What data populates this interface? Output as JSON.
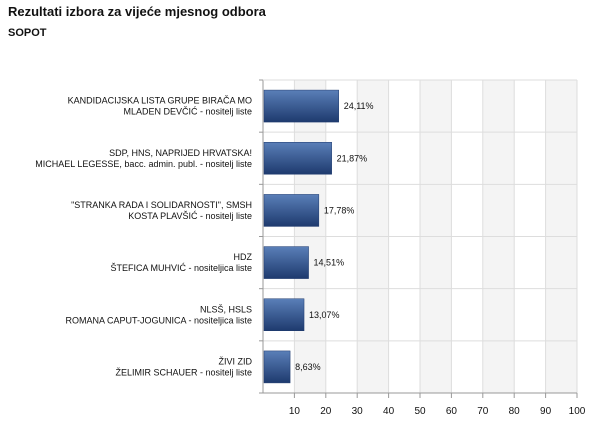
{
  "title": "Rezultati izbora za vijeće mjesnog odbora",
  "subtitle": "SOPOT",
  "colors": {
    "bar_dark": "#1e3a6e",
    "bar_light": "#5a7fb8",
    "band_alt": "#f4f4f4",
    "grid": "#dddddd",
    "axis": "#999999"
  },
  "chart_data": {
    "type": "bar",
    "orientation": "horizontal",
    "categories": [
      [
        "KANDIDACIJSKA LISTA GRUPE BIRAČA MO",
        "MLADEN DEVČIĆ - nositelj liste"
      ],
      [
        "SDP, HNS, NAPRIJED HRVATSKA!",
        "MICHAEL LEGESSE, bacc. admin. publ. - nositelj liste"
      ],
      [
        "\"STRANKA RADA I SOLIDARNOSTI\", SMSH",
        "KOSTA PLAVŠIĆ - nositelj liste"
      ],
      [
        "HDZ",
        "ŠTEFICA MUHVIĆ - nositeljica liste"
      ],
      [
        "NLSŠ, HSLS",
        "ROMANA CAPUT-JOGUNICA - nositeljica liste"
      ],
      [
        "ŽIVI ZID",
        "ŽELIMIR SCHAUER - nositelj liste"
      ]
    ],
    "values": [
      24.11,
      21.87,
      17.78,
      14.51,
      13.07,
      8.63
    ],
    "value_labels": [
      "24,11%",
      "21,87%",
      "17,78%",
      "14,51%",
      "13,07%",
      "8,63%"
    ],
    "x_ticks": [
      "10",
      "20",
      "30",
      "40",
      "50",
      "60",
      "70",
      "80",
      "90",
      "100"
    ],
    "xlim": [
      0,
      100
    ],
    "grid": true,
    "legend": "none"
  }
}
